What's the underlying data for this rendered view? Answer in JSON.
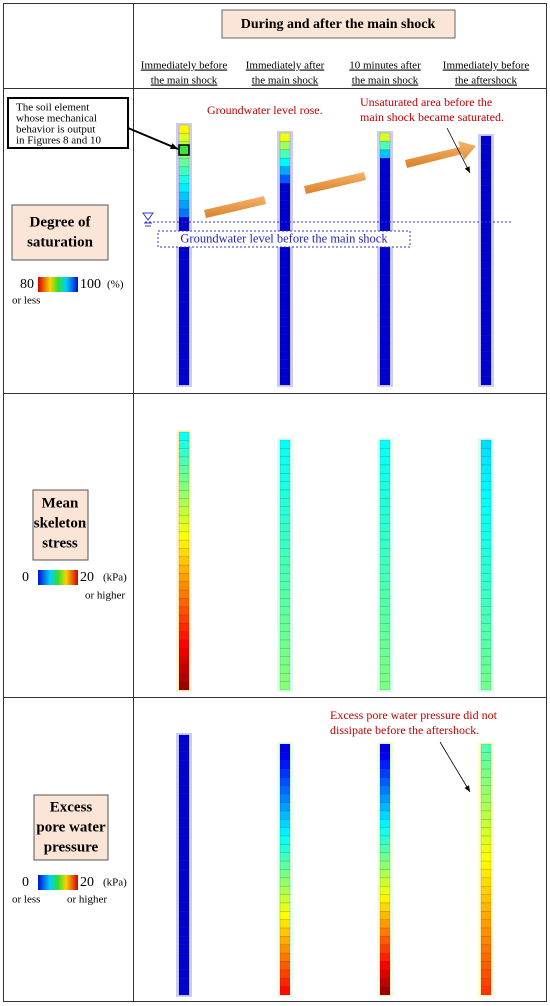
{
  "header": {
    "title": "During and after the main shock",
    "columns": [
      [
        "Immediately before",
        "the main shock"
      ],
      [
        "Immediately after",
        "the main shock"
      ],
      [
        "10 minutes after",
        "the main shock"
      ],
      [
        "Immediately before",
        "the aftershock"
      ]
    ]
  },
  "rows": [
    {
      "label": [
        "Degree of",
        "saturation"
      ],
      "legend": {
        "min": "80",
        "max": "100",
        "unit": "(%)",
        "min_note": "or less"
      },
      "annotations": {
        "soil_element": [
          "The soil element",
          "whose mechanical",
          "behavior is output",
          "in Figures 8 and 10"
        ],
        "rose": "Groundwater level rose.",
        "saturated": [
          "Unsaturated area before the",
          "main shock became saturated."
        ],
        "before": "Groundwater level before the main shock"
      }
    },
    {
      "label": [
        "Mean",
        "skeleton",
        "stress"
      ],
      "legend": {
        "min": "0",
        "max": "20",
        "unit": "(kPa)",
        "max_note": "or higher"
      }
    },
    {
      "label": [
        "Excess",
        "pore water",
        "pressure"
      ],
      "legend": {
        "min": "0",
        "max": "20",
        "unit": "(kPa)",
        "min_note": "or less",
        "max_note": "or higher"
      },
      "annotations": {
        "not_dissipated": [
          "Excess pore water pressure did not",
          "dissipate before the aftershock."
        ]
      }
    }
  ]
}
